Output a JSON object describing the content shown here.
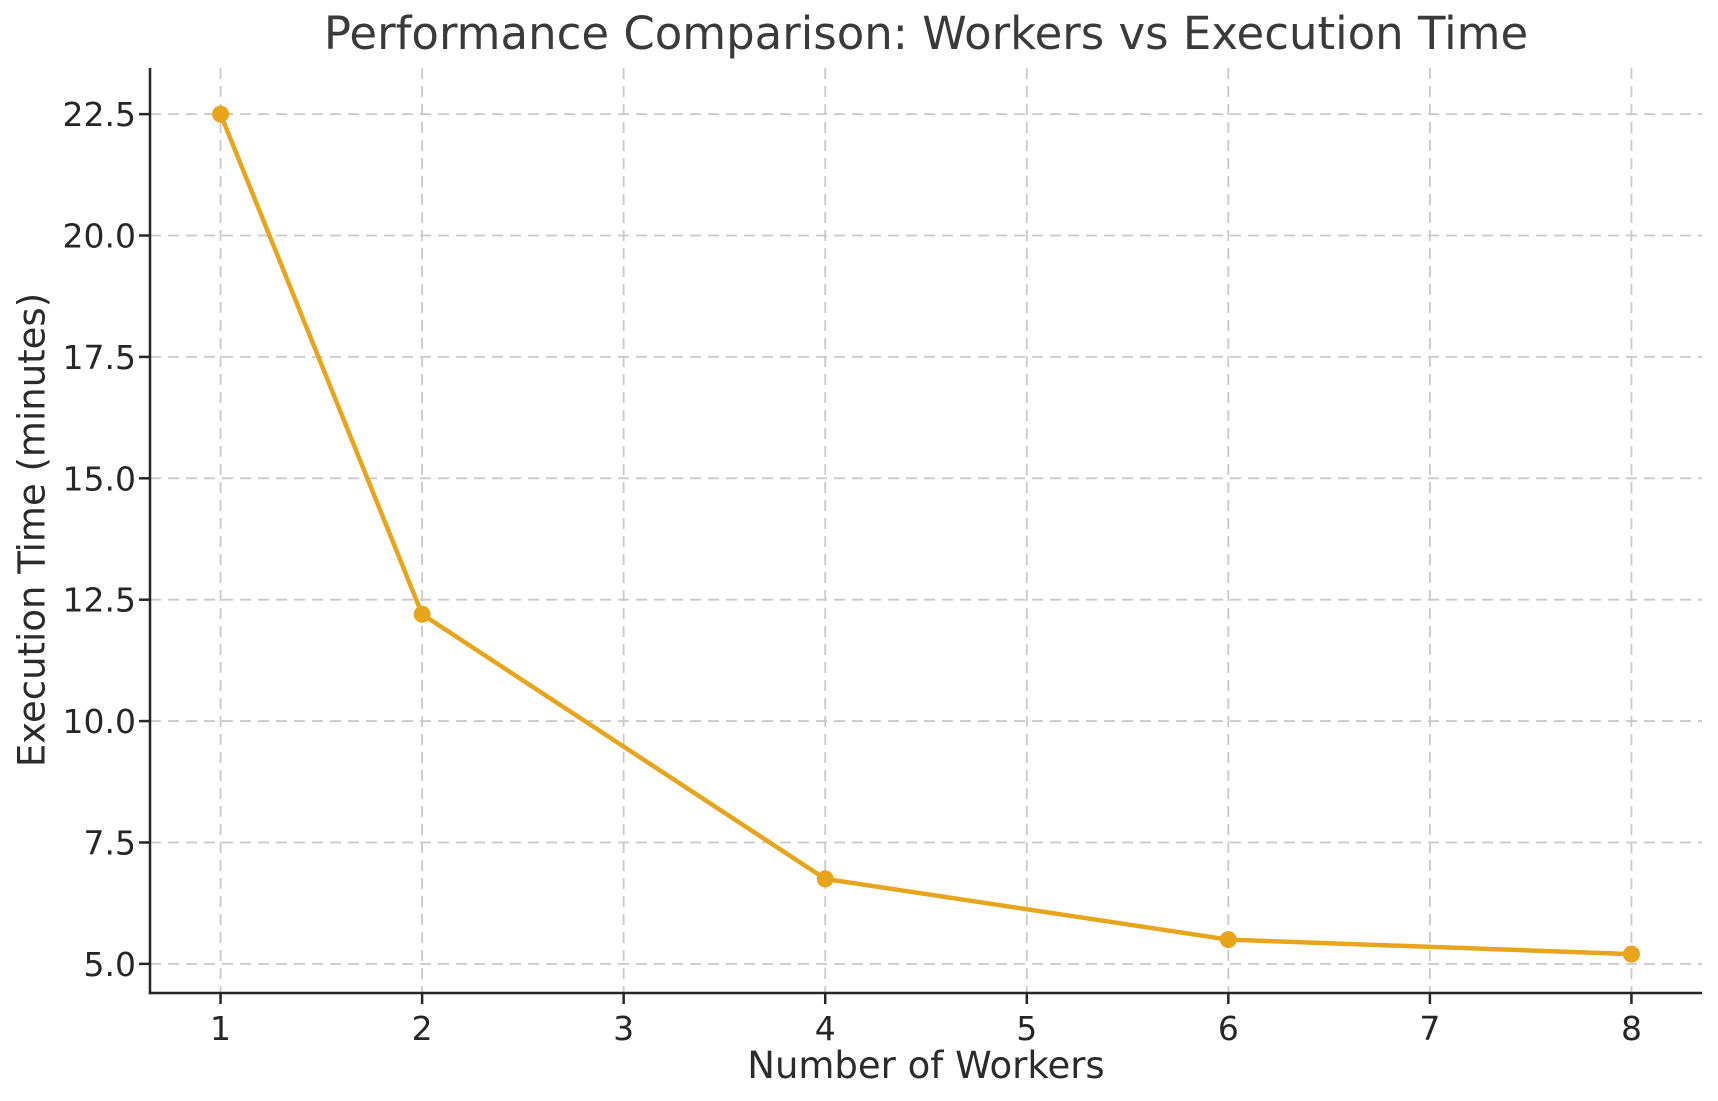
{
  "chart_data": {
    "type": "line",
    "title": "Performance Comparison: Workers vs Execution Time",
    "xlabel": "Number of Workers",
    "ylabel": "Execution Time (minutes)",
    "series": [
      {
        "x": [
          1,
          2,
          4,
          6,
          8
        ],
        "y": [
          22.5,
          12.2,
          6.75,
          5.5,
          5.2
        ],
        "color": "#E8A41B",
        "marker": "circle",
        "line_style": "solid"
      }
    ],
    "xticks": [
      1,
      2,
      3,
      4,
      5,
      6,
      7,
      8
    ],
    "xtick_labels": [
      "1",
      "2",
      "3",
      "4",
      "5",
      "6",
      "7",
      "8"
    ],
    "yticks": [
      5.0,
      7.5,
      10.0,
      12.5,
      15.0,
      17.5,
      20.0,
      22.5
    ],
    "ytick_labels": [
      "5.0",
      "7.5",
      "10.0",
      "12.5",
      "15.0",
      "17.5",
      "20.0",
      "22.5"
    ],
    "xlim": [
      0.65,
      8.35
    ],
    "ylim": [
      4.4,
      23.45
    ],
    "grid": true,
    "grid_line_style": "dashed",
    "legend": false,
    "spines": [
      "left",
      "bottom"
    ]
  },
  "style": {
    "line_color": "#E8A41B",
    "marker_color": "#E8A41B",
    "grid_color": "#C9C9C9",
    "axis_color": "#262626",
    "tick_label_color": "#262626",
    "title_color": "#3A3A3A",
    "axis_label_color": "#2B2B2B",
    "background_color": "#FFFFFF"
  }
}
